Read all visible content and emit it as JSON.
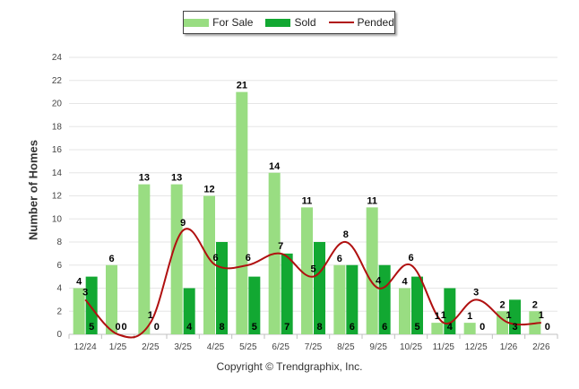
{
  "chart_data": {
    "type": "bar",
    "categories": [
      "12/24",
      "1/25",
      "2/25",
      "3/25",
      "4/25",
      "5/25",
      "6/25",
      "7/25",
      "8/25",
      "9/25",
      "10/25",
      "11/25",
      "12/25",
      "1/26",
      "2/26"
    ],
    "series": [
      {
        "name": "For Sale",
        "type": "bar",
        "color": "#99dd82",
        "values": [
          4,
          6,
          13,
          13,
          12,
          21,
          14,
          11,
          6,
          11,
          4,
          1,
          1,
          2,
          2
        ]
      },
      {
        "name": "Sold",
        "type": "bar",
        "color": "#12a832",
        "values": [
          5,
          0,
          0,
          4,
          8,
          5,
          7,
          8,
          6,
          6,
          5,
          4,
          0,
          3,
          0
        ]
      },
      {
        "name": "Pended",
        "type": "line",
        "color": "#b01010",
        "values": [
          3,
          0,
          1,
          9,
          6,
          6,
          7,
          5,
          8,
          4,
          6,
          1,
          3,
          1,
          1
        ]
      }
    ],
    "ylabel": "Number of Homes",
    "xlabel": "",
    "ylim": [
      0,
      24
    ],
    "yticks": [
      "0",
      "2",
      "4",
      "6",
      "8",
      "10",
      "12",
      "14",
      "16",
      "18",
      "20",
      "22",
      "24"
    ],
    "grid": true,
    "legend_position": "top-center"
  },
  "footer": {
    "copyright": "Copyright © Trendgraphix, Inc."
  }
}
